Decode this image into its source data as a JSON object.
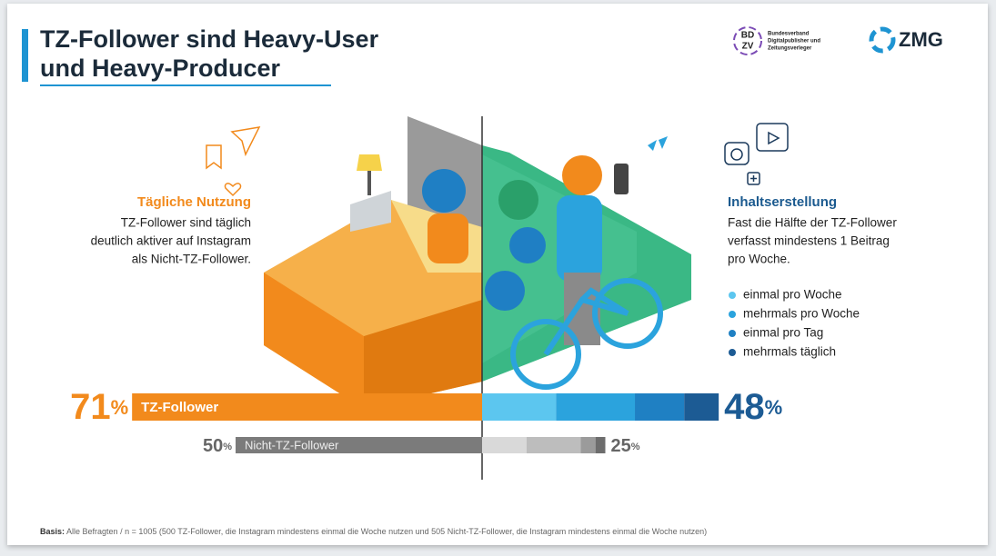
{
  "title": [
    "TZ-Follower sind Heavy-User",
    "und Heavy-Producer"
  ],
  "logos": {
    "bdzv_mark": [
      "BD",
      "ZV"
    ],
    "bdzv_text": [
      "Bundesverband",
      "Digitalpublisher und",
      "Zeitungsverleger"
    ],
    "zmg": "ZMG"
  },
  "left": {
    "heading": "Tägliche Nutzung",
    "text": [
      "TZ-Follower sind täglich",
      "deutlich aktiver auf Instagram",
      "als Nicht-TZ-Follower."
    ]
  },
  "right": {
    "heading": "Inhaltserstellung",
    "text": [
      "Fast die Hälfte der TZ-Follower",
      "verfasst mindestens 1 Beitrag",
      "pro Woche."
    ],
    "legend": [
      {
        "name": "einmal pro Woche",
        "color": "#5cc6ef"
      },
      {
        "name": "mehrmals pro Woche",
        "color": "#2ba3dd"
      },
      {
        "name": "einmal pro Tag",
        "color": "#1f80c3"
      },
      {
        "name": "mehrmals täglich",
        "color": "#1c5b94"
      }
    ]
  },
  "bars": [
    {
      "name": "TZ-Follower",
      "usage": 71,
      "usage_label": "71%",
      "usage_color": "#f28a1c",
      "creation": [
        15,
        16,
        10,
        7
      ],
      "creation_colors": [
        "#5cc6ef",
        "#2ba3dd",
        "#1f80c3",
        "#1c5b94"
      ],
      "creation_total": 48,
      "creation_label": "48%"
    },
    {
      "name": "Nicht-TZ-Follower",
      "usage": 50,
      "usage_label": "50%",
      "usage_color": "#7b7b7b",
      "creation": [
        9,
        11,
        3,
        2
      ],
      "creation_colors": [
        "#d9d9d9",
        "#bdbdbd",
        "#9b9b9b",
        "#6d6d6d"
      ],
      "creation_total": 25,
      "creation_label": "25%"
    }
  ],
  "footnote": {
    "label": "Basis:",
    "text": "Alle Befragten  /  n = 1005 (500 TZ-Follower, die Instagram mindestens einmal die Woche nutzen und 505 Nicht-TZ-Follower, die Instagram mindestens einmal die Woche nutzen)"
  }
}
